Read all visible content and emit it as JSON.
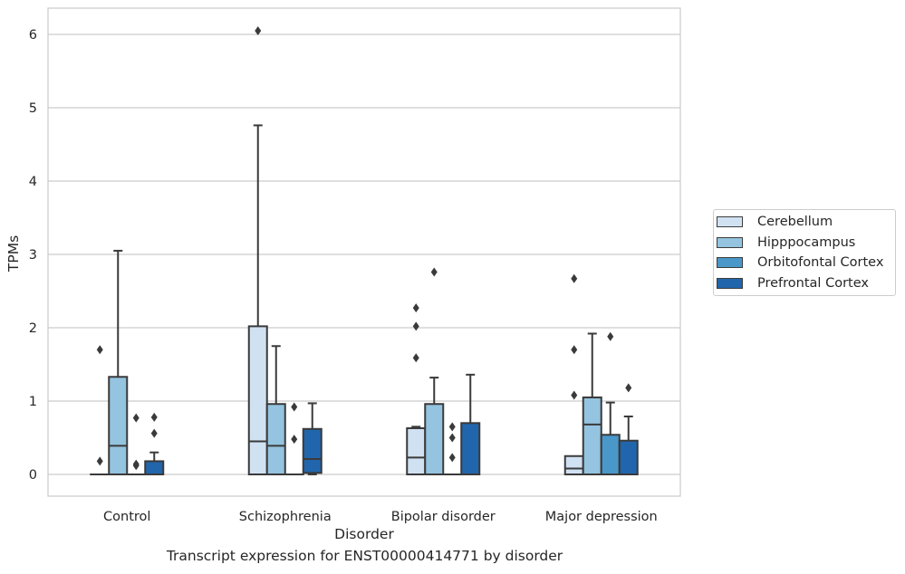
{
  "caption": "Transcript expression for ENST00000414771 by disorder",
  "chart_data": {
    "type": "boxplot",
    "xlabel": "Disorder",
    "ylabel": "TPMs",
    "ylim": [
      -0.3,
      6.35
    ],
    "yticks": [
      0,
      1,
      2,
      3,
      4,
      5,
      6
    ],
    "grid": "horizontal",
    "legend_placement": "outside right",
    "categories": [
      "Control",
      "Schizophrenia",
      "Bipolar disorder",
      "Major depression"
    ],
    "series": [
      {
        "name": "Cerebellum",
        "color": "#d0e1f2",
        "boxes": [
          {
            "whislo": 0,
            "q1": 0,
            "med": 0,
            "q3": 0,
            "whishi": 0,
            "fliers": [
              0.18,
              1.7
            ]
          },
          {
            "whislo": 0,
            "q1": 0,
            "med": 0.45,
            "q3": 2.02,
            "whishi": 4.76,
            "fliers": [
              6.05
            ]
          },
          {
            "whislo": 0,
            "q1": 0,
            "med": 0.23,
            "q3": 0.63,
            "whishi": 0.65,
            "fliers": [
              1.59,
              2.02,
              2.27
            ]
          },
          {
            "whislo": 0,
            "q1": 0,
            "med": 0.08,
            "q3": 0.25,
            "whishi": 0.25,
            "fliers": [
              1.08,
              1.7,
              2.67
            ]
          }
        ]
      },
      {
        "name": "Hipppocampus",
        "color": "#94c4df",
        "boxes": [
          {
            "whislo": 0,
            "q1": 0,
            "med": 0.39,
            "q3": 1.33,
            "whishi": 3.05,
            "fliers": []
          },
          {
            "whislo": 0,
            "q1": 0,
            "med": 0.39,
            "q3": 0.96,
            "whishi": 1.75,
            "fliers": []
          },
          {
            "whislo": 0,
            "q1": 0,
            "med": 0,
            "q3": 0.96,
            "whishi": 1.32,
            "fliers": [
              2.76
            ]
          },
          {
            "whislo": 0,
            "q1": 0,
            "med": 0.68,
            "q3": 1.05,
            "whishi": 1.92,
            "fliers": []
          }
        ]
      },
      {
        "name": "Orbitofontal Cortex",
        "color": "#4a98c9",
        "boxes": [
          {
            "whislo": 0,
            "q1": 0,
            "med": 0,
            "q3": 0,
            "whishi": 0,
            "fliers": [
              0.12,
              0.14,
              0.77
            ]
          },
          {
            "whislo": 0,
            "q1": 0,
            "med": 0,
            "q3": 0,
            "whishi": 0,
            "fliers": [
              0.48,
              0.92
            ]
          },
          {
            "whislo": 0,
            "q1": 0,
            "med": 0,
            "q3": 0,
            "whishi": 0,
            "fliers": [
              0.23,
              0.5,
              0.65
            ]
          },
          {
            "whislo": 0,
            "q1": 0,
            "med": 0,
            "q3": 0.54,
            "whishi": 0.98,
            "fliers": [
              1.88
            ]
          }
        ]
      },
      {
        "name": "Prefrontal Cortex",
        "color": "#2166ac",
        "boxes": [
          {
            "whislo": 0,
            "q1": 0,
            "med": 0,
            "q3": 0.18,
            "whishi": 0.3,
            "fliers": [
              0.56,
              0.78
            ]
          },
          {
            "whislo": 0,
            "q1": 0.02,
            "med": 0.21,
            "q3": 0.62,
            "whishi": 0.97,
            "fliers": []
          },
          {
            "whislo": 0,
            "q1": 0,
            "med": 0,
            "q3": 0.7,
            "whishi": 1.36,
            "fliers": []
          },
          {
            "whislo": 0,
            "q1": 0,
            "med": 0,
            "q3": 0.46,
            "whishi": 0.79,
            "fliers": [
              1.18
            ]
          }
        ]
      }
    ]
  }
}
